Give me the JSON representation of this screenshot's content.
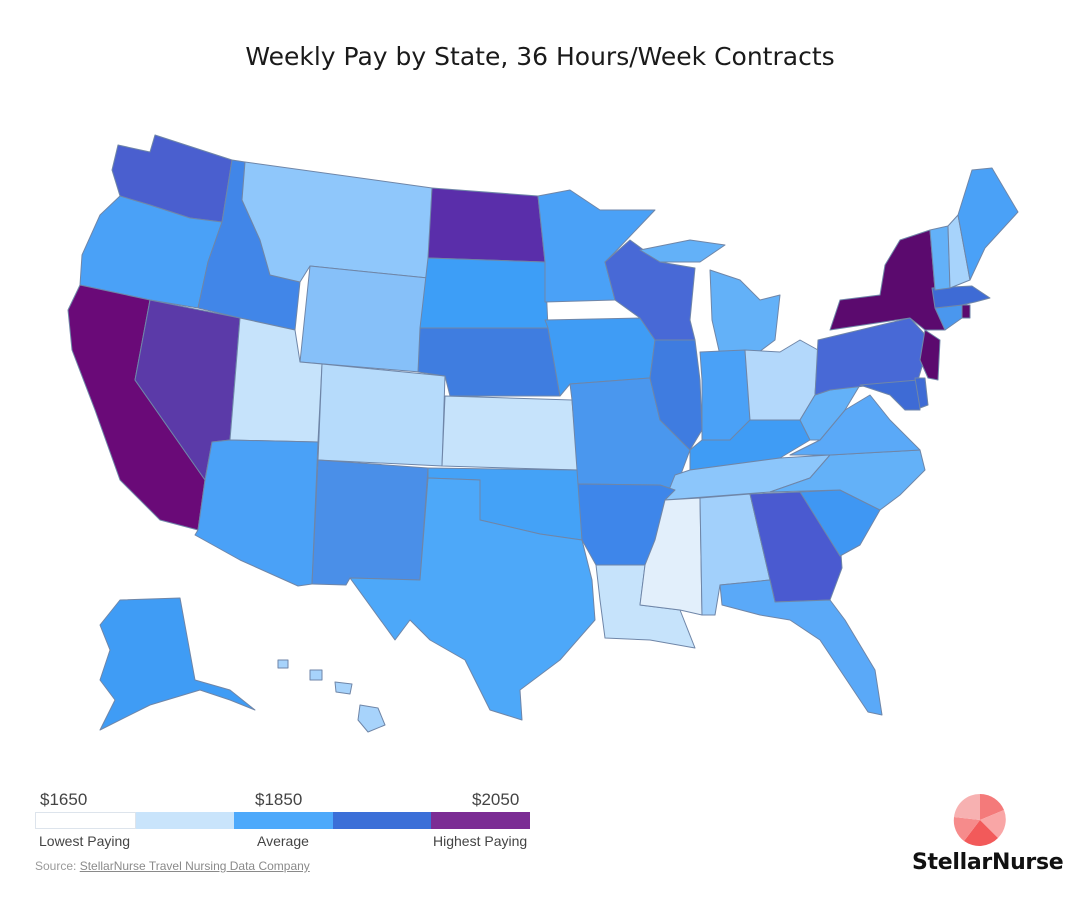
{
  "title": "Weekly Pay by State, 36 Hours/Week Contracts",
  "colors": {
    "lowest": "#ffffff",
    "low": "#c9e4fb",
    "average": "#4da9fb",
    "high": "#3b6fd8",
    "highest": "#7b2c94"
  },
  "legend": {
    "values": [
      "$1650",
      "$1850",
      "$2050"
    ],
    "labels": [
      "Lowest Paying",
      "Average",
      "Highest Paying"
    ]
  },
  "source": {
    "prefix": "Source: ",
    "link": "StellarNurse Travel Nursing Data Company"
  },
  "brand": {
    "name": "StellarNurse",
    "logo_icon": "pie-logo-icon"
  }
}
